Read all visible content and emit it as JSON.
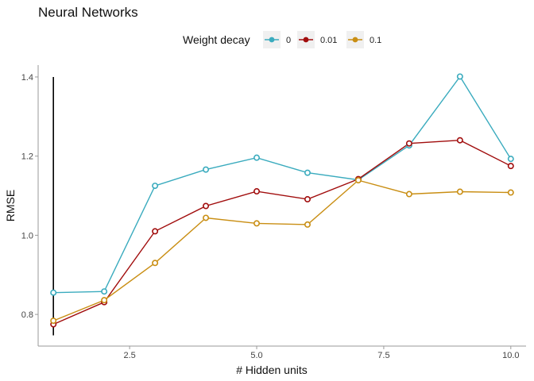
{
  "chart_data": {
    "type": "line",
    "title": "Neural Networks",
    "xlabel": "# Hidden units",
    "ylabel": "RMSE",
    "xlim": [
      0.7,
      10.3
    ],
    "ylim": [
      0.72,
      1.43
    ],
    "x_ticks": [
      2.5,
      5.0,
      7.5,
      10.0
    ],
    "x_tick_labels": [
      "2.5",
      "5.0",
      "7.5",
      "10.0"
    ],
    "y_ticks": [
      0.8,
      1.0,
      1.2,
      1.4
    ],
    "y_tick_labels": [
      "0.8",
      "1.0",
      "1.2",
      "1.4"
    ],
    "grid": false,
    "legend": {
      "title": "Weight decay",
      "position": "top"
    },
    "x": [
      1,
      2,
      3,
      4,
      5,
      6,
      7,
      8,
      9,
      10
    ],
    "series": [
      {
        "name": "0",
        "color": "#3aabbe",
        "values": [
          0.855,
          0.858,
          1.125,
          1.166,
          1.196,
          1.158,
          1.14,
          1.227,
          1.401,
          1.193
        ]
      },
      {
        "name": "0.01",
        "color": "#a10d0d",
        "values": [
          0.775,
          0.831,
          1.01,
          1.074,
          1.111,
          1.091,
          1.142,
          1.232,
          1.24,
          1.175
        ]
      },
      {
        "name": "0.1",
        "color": "#c98e13",
        "values": [
          0.784,
          0.836,
          0.93,
          1.044,
          1.03,
          1.027,
          1.139,
          1.104,
          1.11,
          1.108
        ]
      }
    ],
    "annotations": [
      {
        "type": "vline",
        "x": 1,
        "y_from": 0.747,
        "y_to": 1.4,
        "color": "#000000"
      }
    ]
  }
}
